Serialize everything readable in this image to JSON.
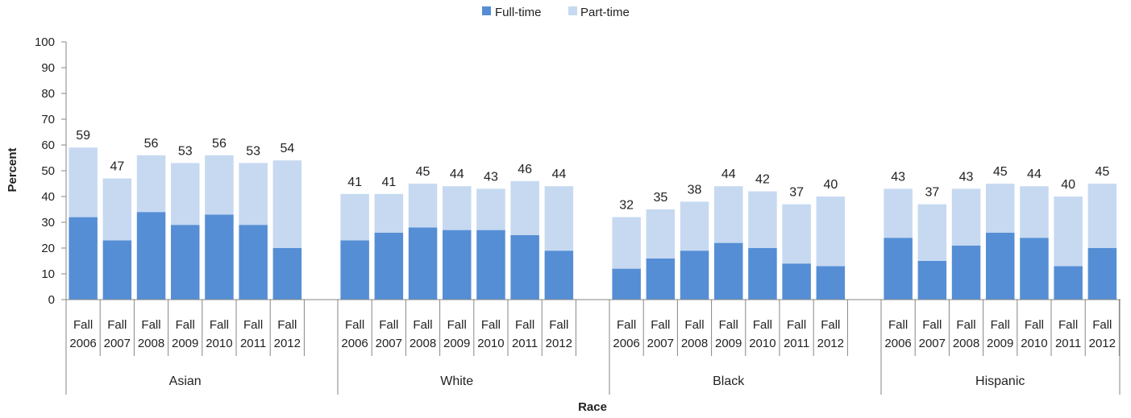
{
  "chart_data": {
    "type": "bar",
    "stacked": true,
    "xlabel": "Race",
    "ylabel": "Percent",
    "ylim": [
      0,
      100
    ],
    "yticks": [
      0,
      10,
      20,
      30,
      40,
      50,
      60,
      70,
      80,
      90,
      100
    ],
    "legend_position": "top",
    "grid": false,
    "series": [
      {
        "name": "Full-time",
        "color": "#558ED5"
      },
      {
        "name": "Part-time",
        "color": "#C6D9F1"
      }
    ],
    "groups": [
      {
        "name": "Asian",
        "categories": [
          [
            "Fall",
            "2006"
          ],
          [
            "Fall",
            "2007"
          ],
          [
            "Fall",
            "2008"
          ],
          [
            "Fall",
            "2009"
          ],
          [
            "Fall",
            "2010"
          ],
          [
            "Fall",
            "2011"
          ],
          [
            "Fall",
            "2012"
          ]
        ],
        "full_time": [
          32,
          23,
          34,
          29,
          33,
          29,
          20
        ],
        "totals": [
          59,
          47,
          56,
          53,
          56,
          53,
          54
        ]
      },
      {
        "name": "White",
        "categories": [
          [
            "Fall",
            "2006"
          ],
          [
            "Fall",
            "2007"
          ],
          [
            "Fall",
            "2008"
          ],
          [
            "Fall",
            "2009"
          ],
          [
            "Fall",
            "2010"
          ],
          [
            "Fall",
            "2011"
          ],
          [
            "Fall",
            "2012"
          ]
        ],
        "full_time": [
          23,
          26,
          28,
          27,
          27,
          25,
          19
        ],
        "totals": [
          41,
          41,
          45,
          44,
          43,
          46,
          44
        ]
      },
      {
        "name": "Black",
        "categories": [
          [
            "Fall",
            "2006"
          ],
          [
            "Fall",
            "2007"
          ],
          [
            "Fall",
            "2008"
          ],
          [
            "Fall",
            "2009"
          ],
          [
            "Fall",
            "2010"
          ],
          [
            "Fall",
            "2011"
          ],
          [
            "Fall",
            "2012"
          ]
        ],
        "full_time": [
          12,
          16,
          19,
          22,
          20,
          14,
          13
        ],
        "totals": [
          32,
          35,
          38,
          44,
          42,
          37,
          40
        ]
      },
      {
        "name": "Hispanic",
        "categories": [
          [
            "Fall",
            "2006"
          ],
          [
            "Fall",
            "2007"
          ],
          [
            "Fall",
            "2008"
          ],
          [
            "Fall",
            "2009"
          ],
          [
            "Fall",
            "2010"
          ],
          [
            "Fall",
            "2011"
          ],
          [
            "Fall",
            "2012"
          ]
        ],
        "full_time": [
          24,
          15,
          21,
          26,
          24,
          13,
          20
        ],
        "totals": [
          43,
          37,
          43,
          45,
          44,
          40,
          45
        ]
      }
    ]
  }
}
